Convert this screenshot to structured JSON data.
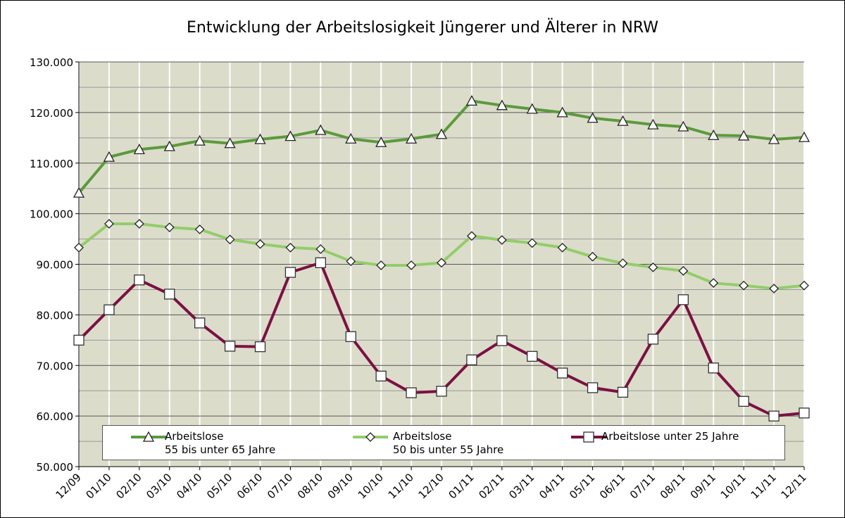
{
  "chart_data": {
    "type": "line",
    "title": "Entwicklung der Arbeitslosigkeit Jüngerer und Älterer in NRW",
    "categories": [
      "12/09",
      "01/10",
      "02/10",
      "03/10",
      "04/10",
      "05/10",
      "06/10",
      "07/10",
      "08/10",
      "09/10",
      "10/10",
      "11/10",
      "12/10",
      "01/11",
      "02/11",
      "03/11",
      "04/11",
      "05/11",
      "06/11",
      "07/11",
      "08/11",
      "09/11",
      "10/11",
      "11/11",
      "12/11"
    ],
    "series": [
      {
        "name": "Arbeitslose\n55 bis unter 65 Jahre",
        "color": "#5b9a3c",
        "marker": "triangle",
        "values": [
          104100,
          111200,
          112700,
          113300,
          114400,
          113900,
          114700,
          115300,
          116500,
          114800,
          114100,
          114800,
          115700,
          122300,
          121400,
          120700,
          120000,
          118900,
          118300,
          117600,
          117200,
          115500,
          115400,
          114700,
          115100
        ]
      },
      {
        "name": "Arbeitslose\n50 bis unter 55 Jahre",
        "color": "#92cd6a",
        "marker": "diamond",
        "values": [
          93300,
          98000,
          98000,
          97300,
          96900,
          94900,
          94000,
          93300,
          93000,
          90600,
          89800,
          89800,
          90300,
          95600,
          94800,
          94200,
          93300,
          91500,
          90200,
          89400,
          88700,
          86300,
          85800,
          85200,
          85800
        ]
      },
      {
        "name": "Arbeitslose unter 25 Jahre",
        "color": "#7b1142",
        "marker": "square",
        "values": [
          75000,
          81000,
          86900,
          84100,
          78400,
          73800,
          73700,
          88400,
          90300,
          75700,
          67900,
          64600,
          64900,
          71100,
          74900,
          71800,
          68500,
          65600,
          64700,
          75200,
          83000,
          69500,
          62900,
          60000,
          60600
        ]
      }
    ],
    "ylim": [
      50000,
      130000
    ],
    "yticks": [
      {
        "value": 50000,
        "label": "50.000"
      },
      {
        "value": 60000,
        "label": "60.000"
      },
      {
        "value": 70000,
        "label": "70.000"
      },
      {
        "value": 80000,
        "label": "80.000"
      },
      {
        "value": 90000,
        "label": "90.000"
      },
      {
        "value": 100000,
        "label": "100.000"
      },
      {
        "value": 110000,
        "label": "110.000"
      },
      {
        "value": 120000,
        "label": "120.000"
      },
      {
        "value": 130000,
        "label": "130.000"
      }
    ],
    "yminorticks": [
      55000,
      65000,
      75000,
      85000,
      95000,
      105000,
      115000,
      125000
    ],
    "grid": true,
    "legend": "bottom"
  }
}
